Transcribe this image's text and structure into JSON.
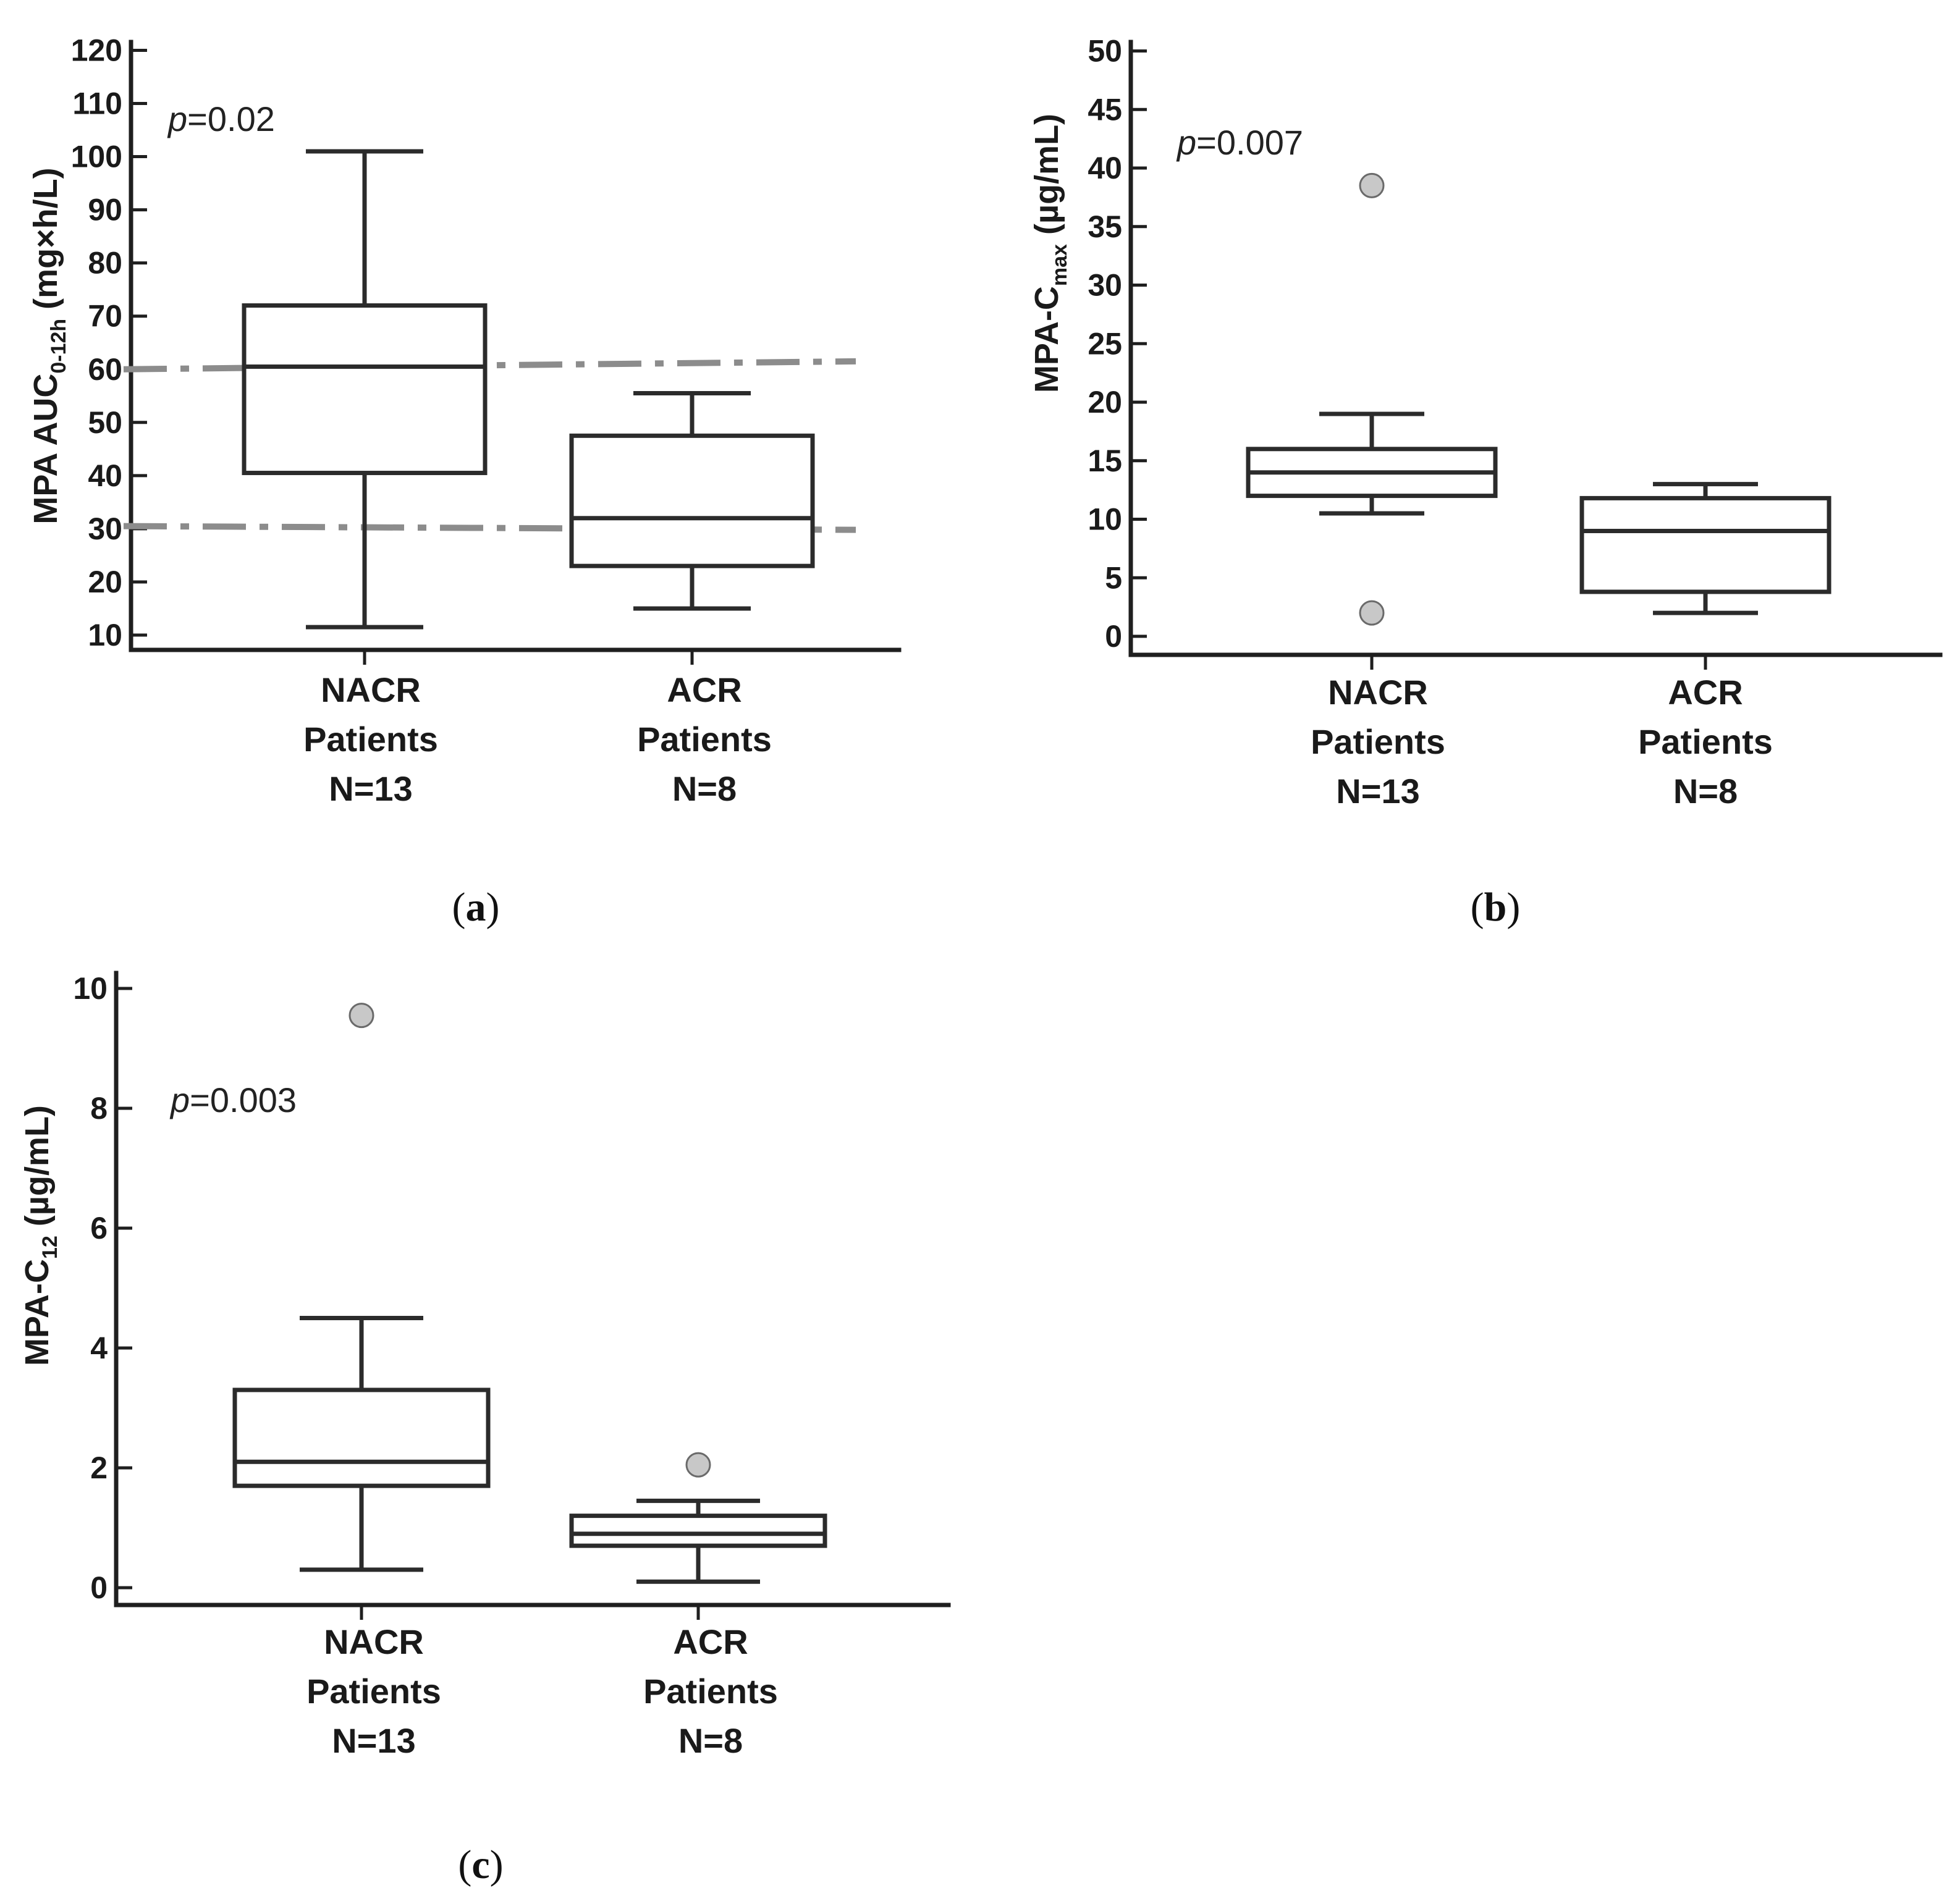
{
  "chart_data": [
    {
      "id": "a",
      "type": "box",
      "panel_label": "a",
      "ylabel": {
        "main": "MPA AUC",
        "sub": "0-12h",
        "unit": "(mg×h/L)"
      },
      "yticks": [
        10,
        20,
        30,
        40,
        50,
        60,
        70,
        80,
        90,
        100,
        110,
        120
      ],
      "ylim": [
        8,
        121
      ],
      "pvalue": {
        "p": "p",
        "rest": "=0.02"
      },
      "reference_lines": [
        {
          "y_start": 60,
          "y_end": 61.5
        },
        {
          "y_start": 30.5,
          "y_end": 29.8
        }
      ],
      "groups": [
        {
          "line1": "NACR",
          "line2": "Patients",
          "line3": "N=13",
          "whisker_low": 11.5,
          "q1": 40.5,
          "median": 60.5,
          "q3": 72,
          "whisker_high": 101,
          "outliers": []
        },
        {
          "line1": "ACR",
          "line2": "Patients",
          "line3": "N=8",
          "whisker_low": 15,
          "q1": 23,
          "median": 32,
          "q3": 47.5,
          "whisker_high": 55.5,
          "outliers": []
        }
      ]
    },
    {
      "id": "b",
      "type": "box",
      "panel_label": "b",
      "ylabel": {
        "main": "MPA-C",
        "sub": "max",
        "unit": "(µg/mL)"
      },
      "yticks": [
        0,
        5,
        10,
        15,
        20,
        25,
        30,
        35,
        40,
        45,
        50
      ],
      "ylim": [
        -1,
        51
      ],
      "pvalue": {
        "p": "p",
        "rest": "=0.007"
      },
      "reference_lines": [],
      "groups": [
        {
          "line1": "NACR",
          "line2": "Patients",
          "line3": "N=13",
          "whisker_low": 10.5,
          "q1": 12,
          "median": 14,
          "q3": 16,
          "whisker_high": 19,
          "outliers": [
            38.5,
            2
          ]
        },
        {
          "line1": "ACR",
          "line2": "Patients",
          "line3": "N=8",
          "whisker_low": 2,
          "q1": 3.8,
          "median": 9,
          "q3": 11.8,
          "whisker_high": 13,
          "outliers": []
        }
      ]
    },
    {
      "id": "c",
      "type": "box",
      "panel_label": "c",
      "ylabel": {
        "main": "MPA-C",
        "sub": "12",
        "unit": "(µg/mL)"
      },
      "yticks": [
        0,
        2,
        4,
        6,
        8,
        10
      ],
      "ylim": [
        -0.3,
        10.2
      ],
      "pvalue": {
        "p": "p",
        "rest": "=0.003"
      },
      "reference_lines": [],
      "groups": [
        {
          "line1": "NACR",
          "line2": "Patients",
          "line3": "N=13",
          "whisker_low": 0.3,
          "q1": 1.7,
          "median": 2.1,
          "q3": 3.3,
          "whisker_high": 4.5,
          "outliers": [
            9.55
          ]
        },
        {
          "line1": "ACR",
          "line2": "Patients",
          "line3": "N=8",
          "whisker_low": 0.1,
          "q1": 0.7,
          "median": 0.9,
          "q3": 1.2,
          "whisker_high": 1.45,
          "outliers": [
            2.05
          ]
        }
      ]
    }
  ]
}
